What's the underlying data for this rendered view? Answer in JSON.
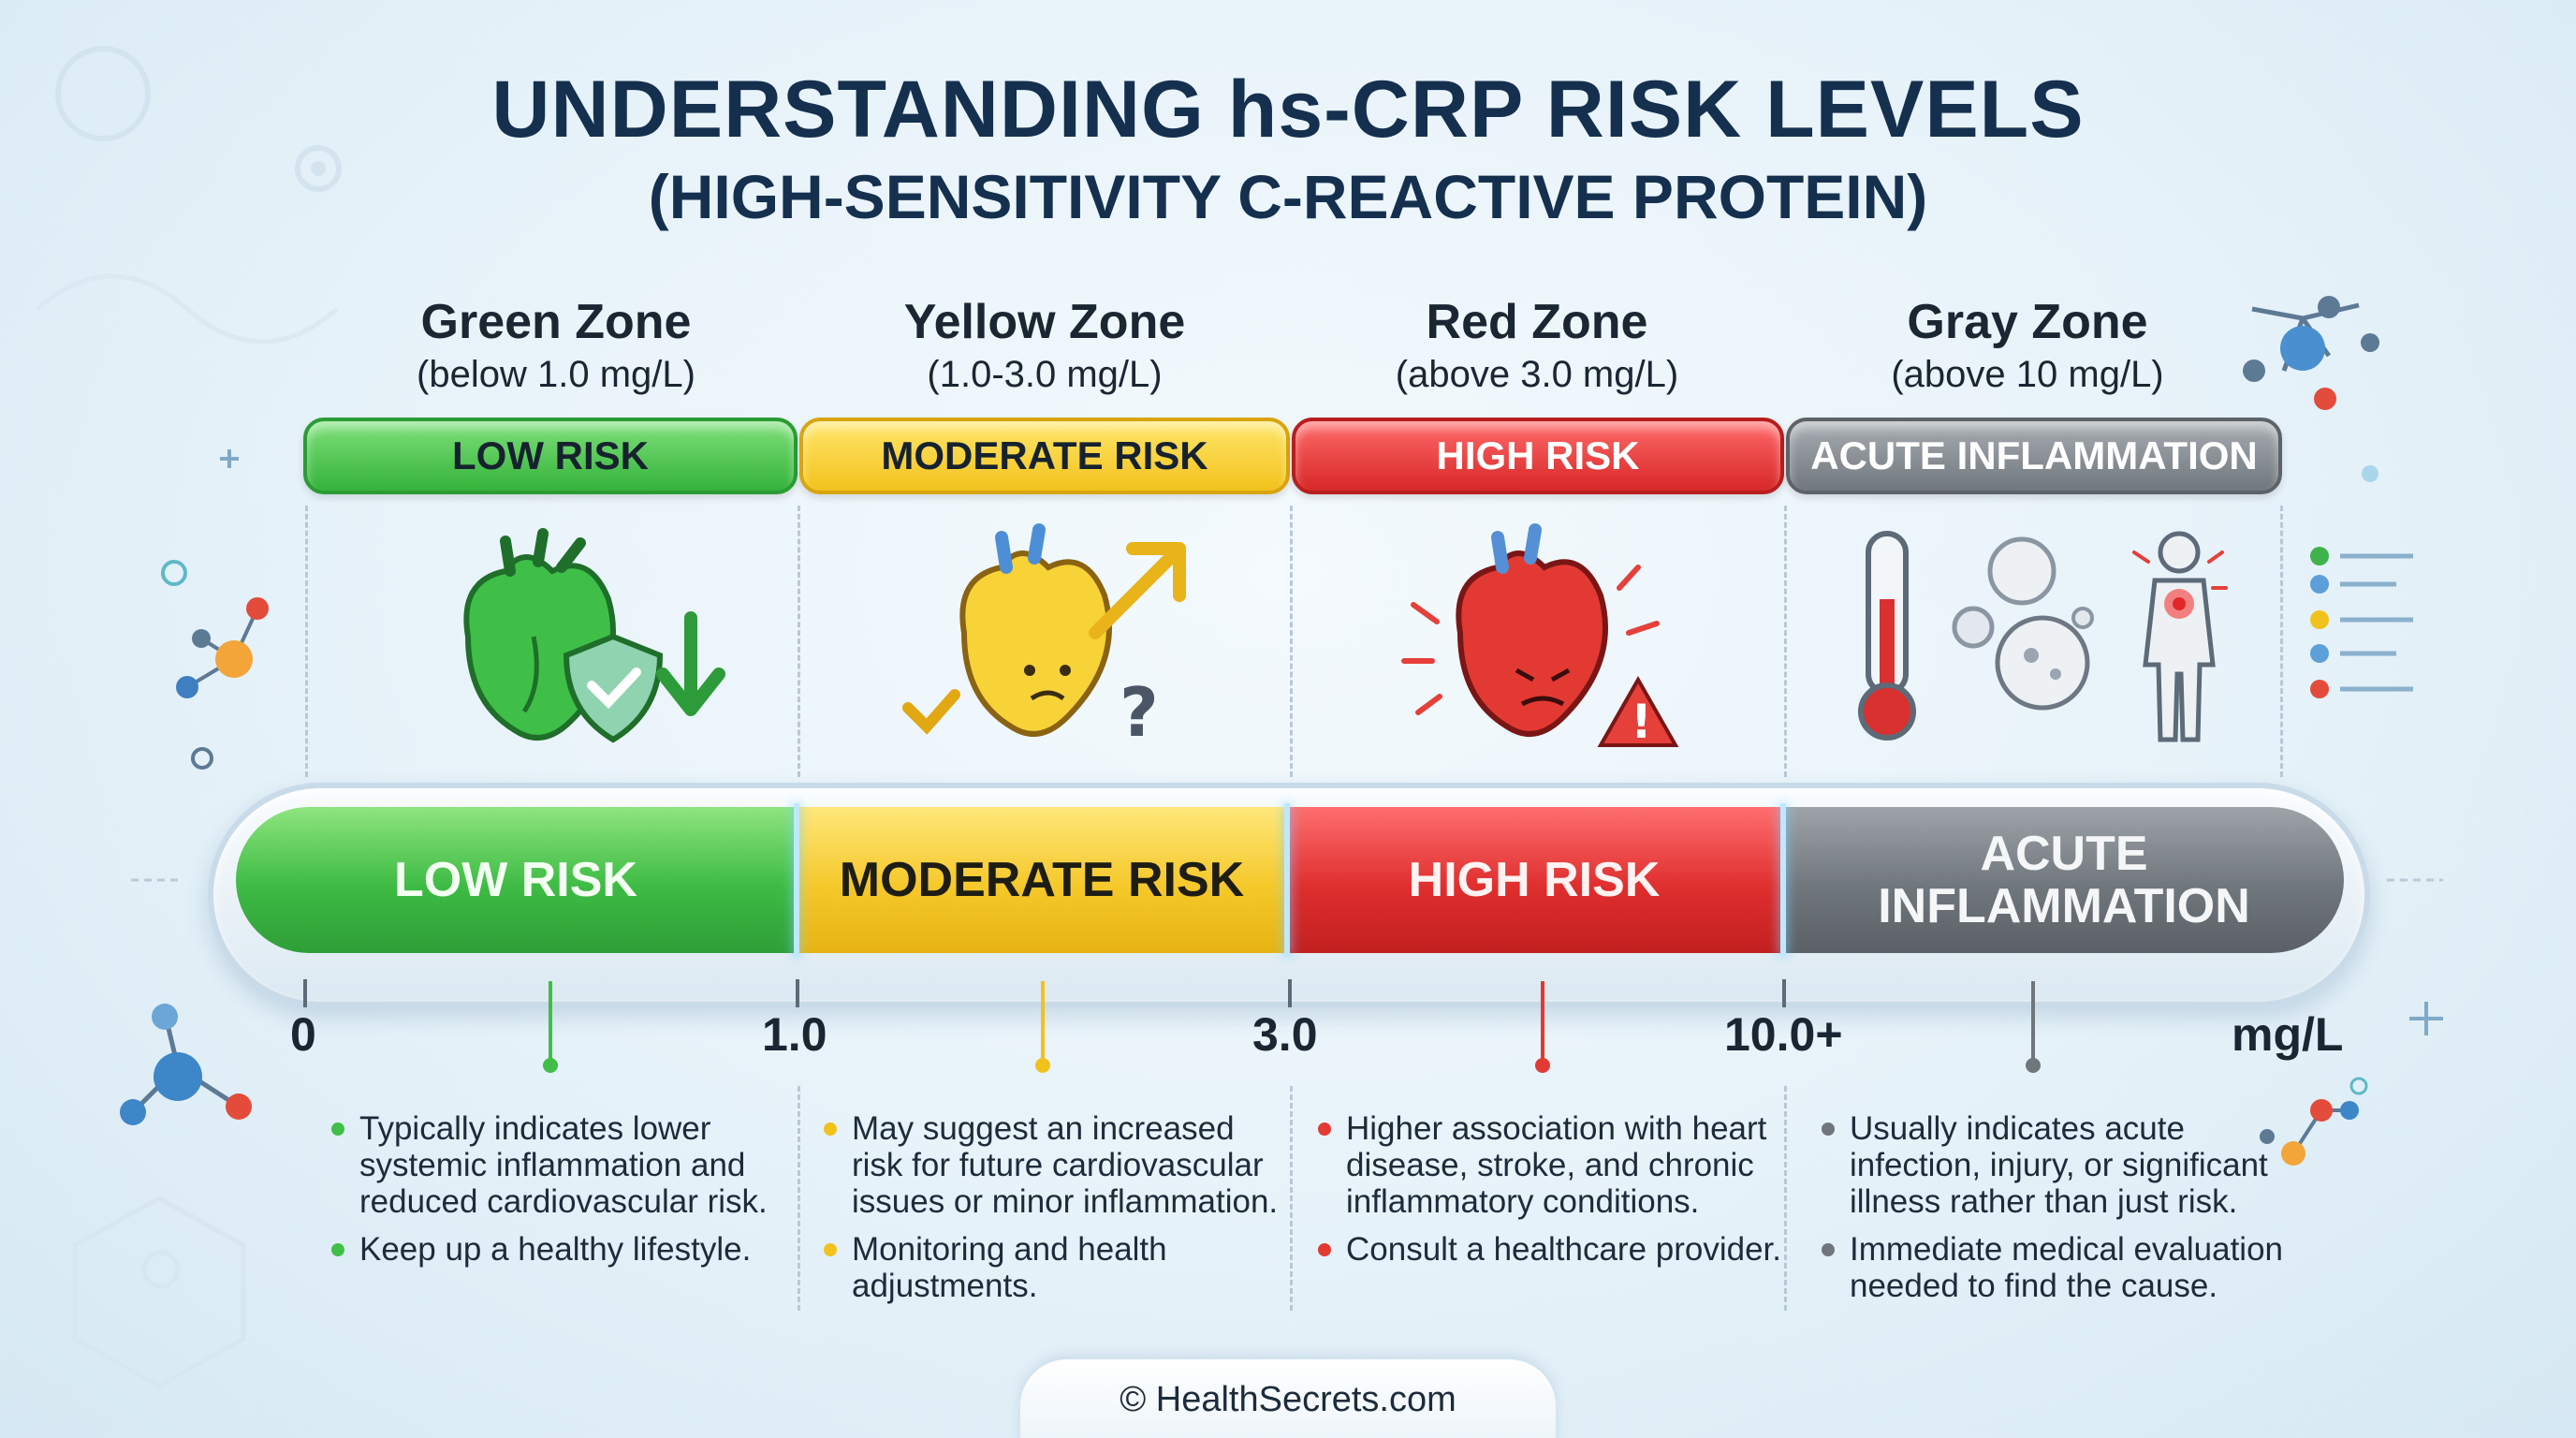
{
  "title": {
    "line1": "UNDERSTANDING hs-CRP RISK LEVELS",
    "line2": "(HIGH-SENSITIVITY C-REACTIVE PROTEIN)"
  },
  "zones": [
    {
      "name": "Green Zone",
      "range": "(below 1.0 mg/L)",
      "risk": "LOW RISK",
      "bar_label": "LOW RISK",
      "color": "#3dbb44",
      "icon": "heart-shield-down-icon"
    },
    {
      "name": "Yellow Zone",
      "range": "(1.0-3.0 mg/L)",
      "risk": "MODERATE RISK",
      "bar_label": "MODERATE RISK",
      "color": "#f5c82a",
      "icon": "heart-uncertain-up-icon"
    },
    {
      "name": "Red Zone",
      "range": "(above 3.0 mg/L)",
      "risk": "HIGH RISK",
      "bar_label": "HIGH RISK",
      "color": "#df2e2e",
      "icon": "heart-alert-icon"
    },
    {
      "name": "Gray Zone",
      "range": "(above 10 mg/L)",
      "risk": "ACUTE INFLAMMATION",
      "bar_label_line1": "ACUTE",
      "bar_label_line2": "INFLAMMATION",
      "color": "#6f767c",
      "icon": "thermometer-cells-body-icon"
    }
  ],
  "scale": {
    "ticks": [
      "0",
      "1.0",
      "3.0",
      "10.0+"
    ],
    "unit": "mg/L"
  },
  "descriptions": [
    [
      "Typically indicates lower systemic inflammation and reduced cardiovascular risk.",
      "Keep up a healthy lifestyle."
    ],
    [
      "May suggest an increased risk for future cardiovascular issues or minor inflammation.",
      "Monitoring and health adjustments."
    ],
    [
      "Higher association with heart disease, stroke, and chronic inflammatory conditions.",
      "Consult a healthcare provider."
    ],
    [
      "Usually indicates acute infection, injury, or significant illness rather than just risk.",
      "Immediate medical evaluation needed to find the cause."
    ]
  ],
  "footer": "© HealthSecrets.com"
}
